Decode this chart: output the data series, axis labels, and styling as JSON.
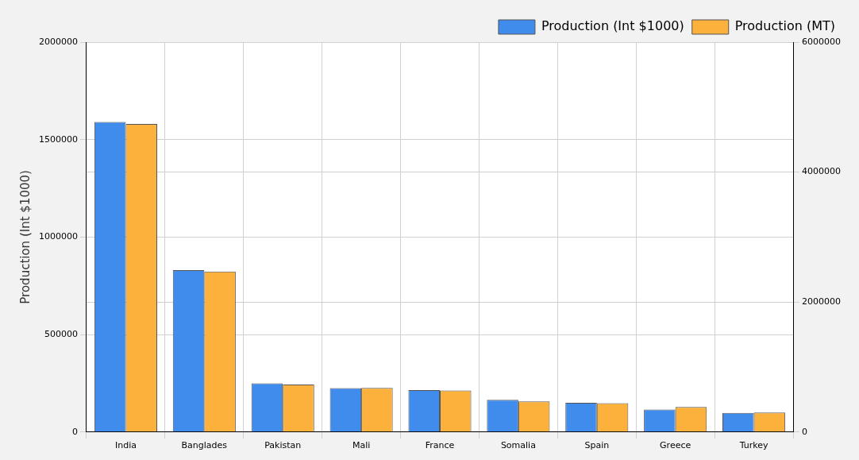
{
  "chart_data": {
    "type": "bar",
    "ylabel": "Production (Int $1000)",
    "categories": [
      "India",
      "Banglades",
      "Pakistan",
      "Mali",
      "France",
      "Somalia",
      "Spain",
      "Greece",
      "Turkey"
    ],
    "series": [
      {
        "name": "Production (Int $1000)",
        "color": "#3f8ced",
        "values": [
          1590000,
          830000,
          250000,
          225000,
          215000,
          165000,
          150000,
          115000,
          98000
        ]
      },
      {
        "name": "Production (MT)",
        "color": "#fbb13c",
        "axis": "y2",
        "values": [
          4740000,
          2470000,
          730000,
          680000,
          640000,
          470000,
          445000,
          385000,
          300000
        ]
      }
    ],
    "ylim": [
      0,
      2000000
    ],
    "yticks": [
      0,
      500000,
      1000000,
      1500000,
      2000000
    ],
    "y2lim": [
      0,
      6000000
    ],
    "y2ticks": [
      0,
      2000000,
      4000000,
      6000000
    ],
    "grid": true,
    "legend": "top right"
  }
}
